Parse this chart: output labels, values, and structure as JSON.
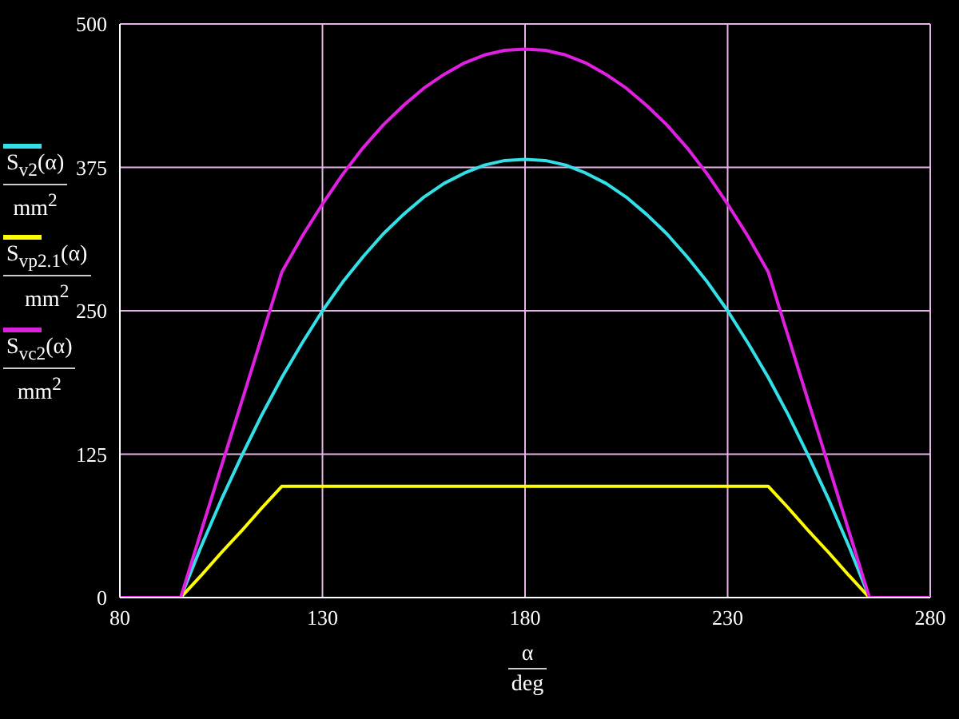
{
  "chart_data": {
    "type": "line",
    "xlabel": "α deg",
    "x": [
      80,
      95,
      100,
      105,
      110,
      115,
      120,
      125,
      130,
      135,
      140,
      145,
      150,
      155,
      160,
      165,
      170,
      175,
      180,
      185,
      190,
      195,
      200,
      205,
      210,
      215,
      220,
      225,
      230,
      235,
      240,
      245,
      250,
      255,
      260,
      265,
      280
    ],
    "series": [
      {
        "name": "S$_{v2}$(α) mm$^{2}$",
        "color": "#33e0e8",
        "values": [
          0,
          0,
          44,
          85,
          123,
          159,
          192,
          222,
          250,
          275,
          297,
          317,
          334,
          349,
          361,
          370,
          377,
          381,
          382,
          381,
          377,
          370,
          361,
          349,
          334,
          317,
          297,
          275,
          250,
          222,
          192,
          159,
          123,
          85,
          44,
          0,
          0
        ]
      },
      {
        "name": "S$_{vp2.1}$(α) mm$^{2}$",
        "color": "#ffff00",
        "values": [
          0,
          0,
          19,
          39,
          58,
          78,
          97,
          97,
          97,
          97,
          97,
          97,
          97,
          97,
          97,
          97,
          97,
          97,
          97,
          97,
          97,
          97,
          97,
          97,
          97,
          97,
          97,
          97,
          97,
          97,
          97,
          78,
          58,
          39,
          19,
          0,
          0
        ]
      },
      {
        "name": "S$_{vc2}$(α) mm$^{2}$",
        "color": "#e020e0",
        "values": [
          0,
          0,
          57,
          114,
          170,
          227,
          284,
          315,
          343,
          369,
          392,
          412,
          429,
          444,
          456,
          466,
          473,
          477,
          478,
          477,
          473,
          466,
          456,
          444,
          429,
          412,
          392,
          369,
          343,
          315,
          284,
          227,
          170,
          114,
          57,
          0,
          0
        ]
      }
    ],
    "xlim": [
      80,
      280
    ],
    "xticks": [
      80,
      130,
      180,
      230,
      280
    ],
    "ylim": [
      0,
      500
    ],
    "yticks": [
      0,
      125,
      250,
      375,
      500
    ],
    "grid": true,
    "legend": "left",
    "marker": "none",
    "line_style": "solid"
  }
}
